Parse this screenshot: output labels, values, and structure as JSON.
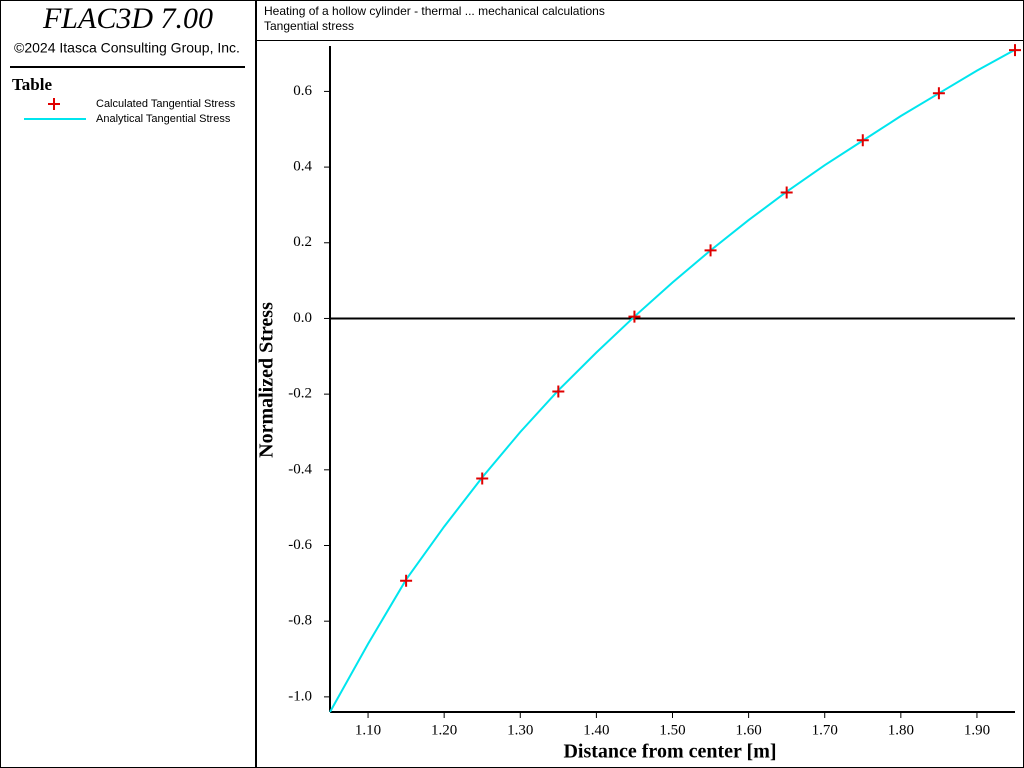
{
  "app": {
    "product": "FLAC3D 7.00",
    "copyright": "©2024 Itasca Consulting Group, Inc.",
    "legend_title": "Table"
  },
  "chart_data": {
    "type": "line",
    "title": "Heating of a hollow cylinder - thermal ... mechanical calculations",
    "subtitle": "Tangential stress",
    "x_label": "Distance from center [m]",
    "y_label": "Normalized Stress",
    "xlim": [
      1.05,
      1.95
    ],
    "ylim": [
      -1.04,
      0.72
    ],
    "xticks": [
      {
        "value": 1.1,
        "label": "1.10"
      },
      {
        "value": 1.2,
        "label": "1.20"
      },
      {
        "value": 1.3,
        "label": "1.30"
      },
      {
        "value": 1.4,
        "label": "1.40"
      },
      {
        "value": 1.5,
        "label": "1.50"
      },
      {
        "value": 1.6,
        "label": "1.60"
      },
      {
        "value": 1.7,
        "label": "1.70"
      },
      {
        "value": 1.8,
        "label": "1.80"
      },
      {
        "value": 1.9,
        "label": "1.90"
      }
    ],
    "yticks": [
      {
        "value": -1,
        "label": "-1.0"
      },
      -0.8,
      -0.6,
      -0.4,
      -0.2,
      {
        "value": 0,
        "label": "0.0"
      },
      0.2,
      0.4,
      0.6
    ],
    "series": [
      {
        "name": "Calculated Tangential Stress",
        "type": "scatter",
        "color": "#e00000",
        "x": [
          1.15,
          1.25,
          1.35,
          1.45,
          1.55,
          1.65,
          1.75,
          1.85,
          1.95
        ],
        "values": [
          -0.693,
          -0.423,
          -0.193,
          0.005,
          0.18,
          0.333,
          0.471,
          0.595,
          0.709
        ]
      },
      {
        "name": "Analytical Tangential Stress",
        "type": "line",
        "color": "#00e5ee",
        "x": [
          1.05,
          1.1,
          1.15,
          1.2,
          1.25,
          1.3,
          1.35,
          1.4,
          1.45,
          1.5,
          1.55,
          1.6,
          1.65,
          1.7,
          1.75,
          1.8,
          1.85,
          1.9,
          1.95
        ],
        "values": [
          -1.04,
          -0.86,
          -0.69,
          -0.55,
          -0.42,
          -0.3,
          -0.19,
          -0.09,
          0.005,
          0.095,
          0.18,
          0.26,
          0.335,
          0.405,
          0.47,
          0.535,
          0.595,
          0.655,
          0.71
        ]
      }
    ]
  }
}
